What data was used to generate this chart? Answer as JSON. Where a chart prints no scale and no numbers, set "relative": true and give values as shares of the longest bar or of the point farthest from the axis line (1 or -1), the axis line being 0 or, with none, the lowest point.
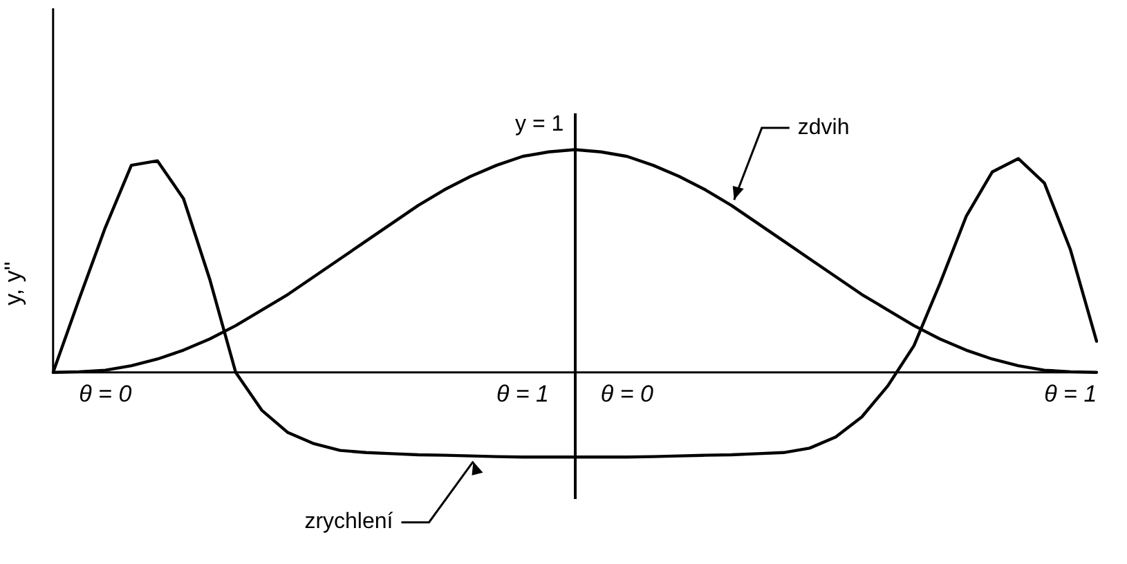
{
  "chart_data": {
    "type": "line",
    "relative": true,
    "ylabel": "y, y''",
    "tick_labels": "x",
    "grid": false,
    "legend": false,
    "marker": "none",
    "line_style": "solid",
    "categories": [
      null,
      null,
      "θ = 0",
      null,
      null,
      null,
      null,
      null,
      null,
      null,
      null,
      null,
      null,
      null,
      null,
      null,
      null,
      null,
      "θ = 1",
      null,
      null,
      null,
      "θ = 0",
      null,
      null,
      null,
      null,
      null,
      null,
      null,
      null,
      null,
      null,
      null,
      null,
      null,
      null,
      null,
      null,
      "θ = 1",
      null
    ],
    "series": [
      {
        "name": "zdvih",
        "color": "#000000",
        "values": [
          0,
          0.003,
          0.01,
          0.03,
          0.06,
          0.1,
          0.15,
          0.21,
          0.28,
          0.35,
          0.43,
          0.51,
          0.59,
          0.67,
          0.75,
          0.82,
          0.88,
          0.93,
          0.97,
          0.99,
          1,
          0.99,
          0.97,
          0.93,
          0.88,
          0.82,
          0.75,
          0.67,
          0.59,
          0.51,
          0.43,
          0.35,
          0.28,
          0.21,
          0.15,
          0.1,
          0.06,
          0.03,
          0.01,
          0.003,
          0
        ]
      },
      {
        "name": "zrychlení",
        "color": "#000000",
        "values": [
          0,
          0.33,
          0.65,
          0.93,
          0.95,
          0.78,
          0.42,
          0,
          -0.17,
          -0.27,
          -0.32,
          -0.35,
          -0.36,
          -0.365,
          -0.37,
          -0.372,
          -0.375,
          -0.378,
          -0.38,
          -0.38,
          -0.38,
          -0.38,
          -0.38,
          -0.378,
          -0.375,
          -0.372,
          -0.37,
          -0.365,
          -0.36,
          -0.34,
          -0.29,
          -0.2,
          -0.06,
          0.12,
          0.4,
          0.7,
          0.9,
          0.96,
          0.85,
          0.55,
          0.14
        ]
      }
    ],
    "annotations": [
      "y = 1"
    ]
  }
}
